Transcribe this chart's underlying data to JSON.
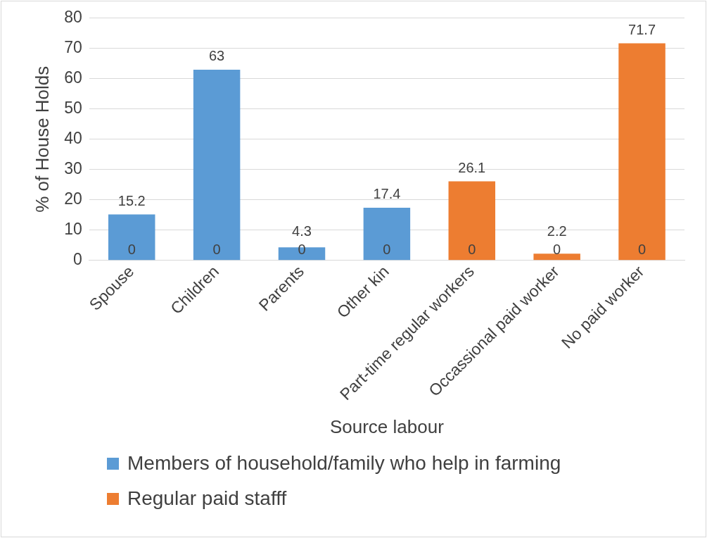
{
  "chart_data": {
    "type": "bar",
    "xlabel": "Source labour",
    "ylabel": "% of House Holds",
    "categories": [
      "Spouse",
      "Children",
      "Parents",
      "Other kin",
      "Part-time regular workers",
      "Occassional paid worker",
      "No paid worker"
    ],
    "series": [
      {
        "name": "Members of household/family who help in farming",
        "color": "#5b9bd5",
        "values": [
          15.2,
          63,
          4.3,
          17.4,
          0,
          0,
          0
        ]
      },
      {
        "name": "Regular paid stafff",
        "color": "#ed7d31",
        "values": [
          0,
          0,
          0,
          0,
          26.1,
          2.2,
          71.7
        ]
      }
    ],
    "ylim": [
      0,
      80
    ],
    "yticks": [
      0,
      10,
      20,
      30,
      40,
      50,
      60,
      70,
      80
    ],
    "grid": "y",
    "data_labels": true,
    "legend": "bottom"
  }
}
